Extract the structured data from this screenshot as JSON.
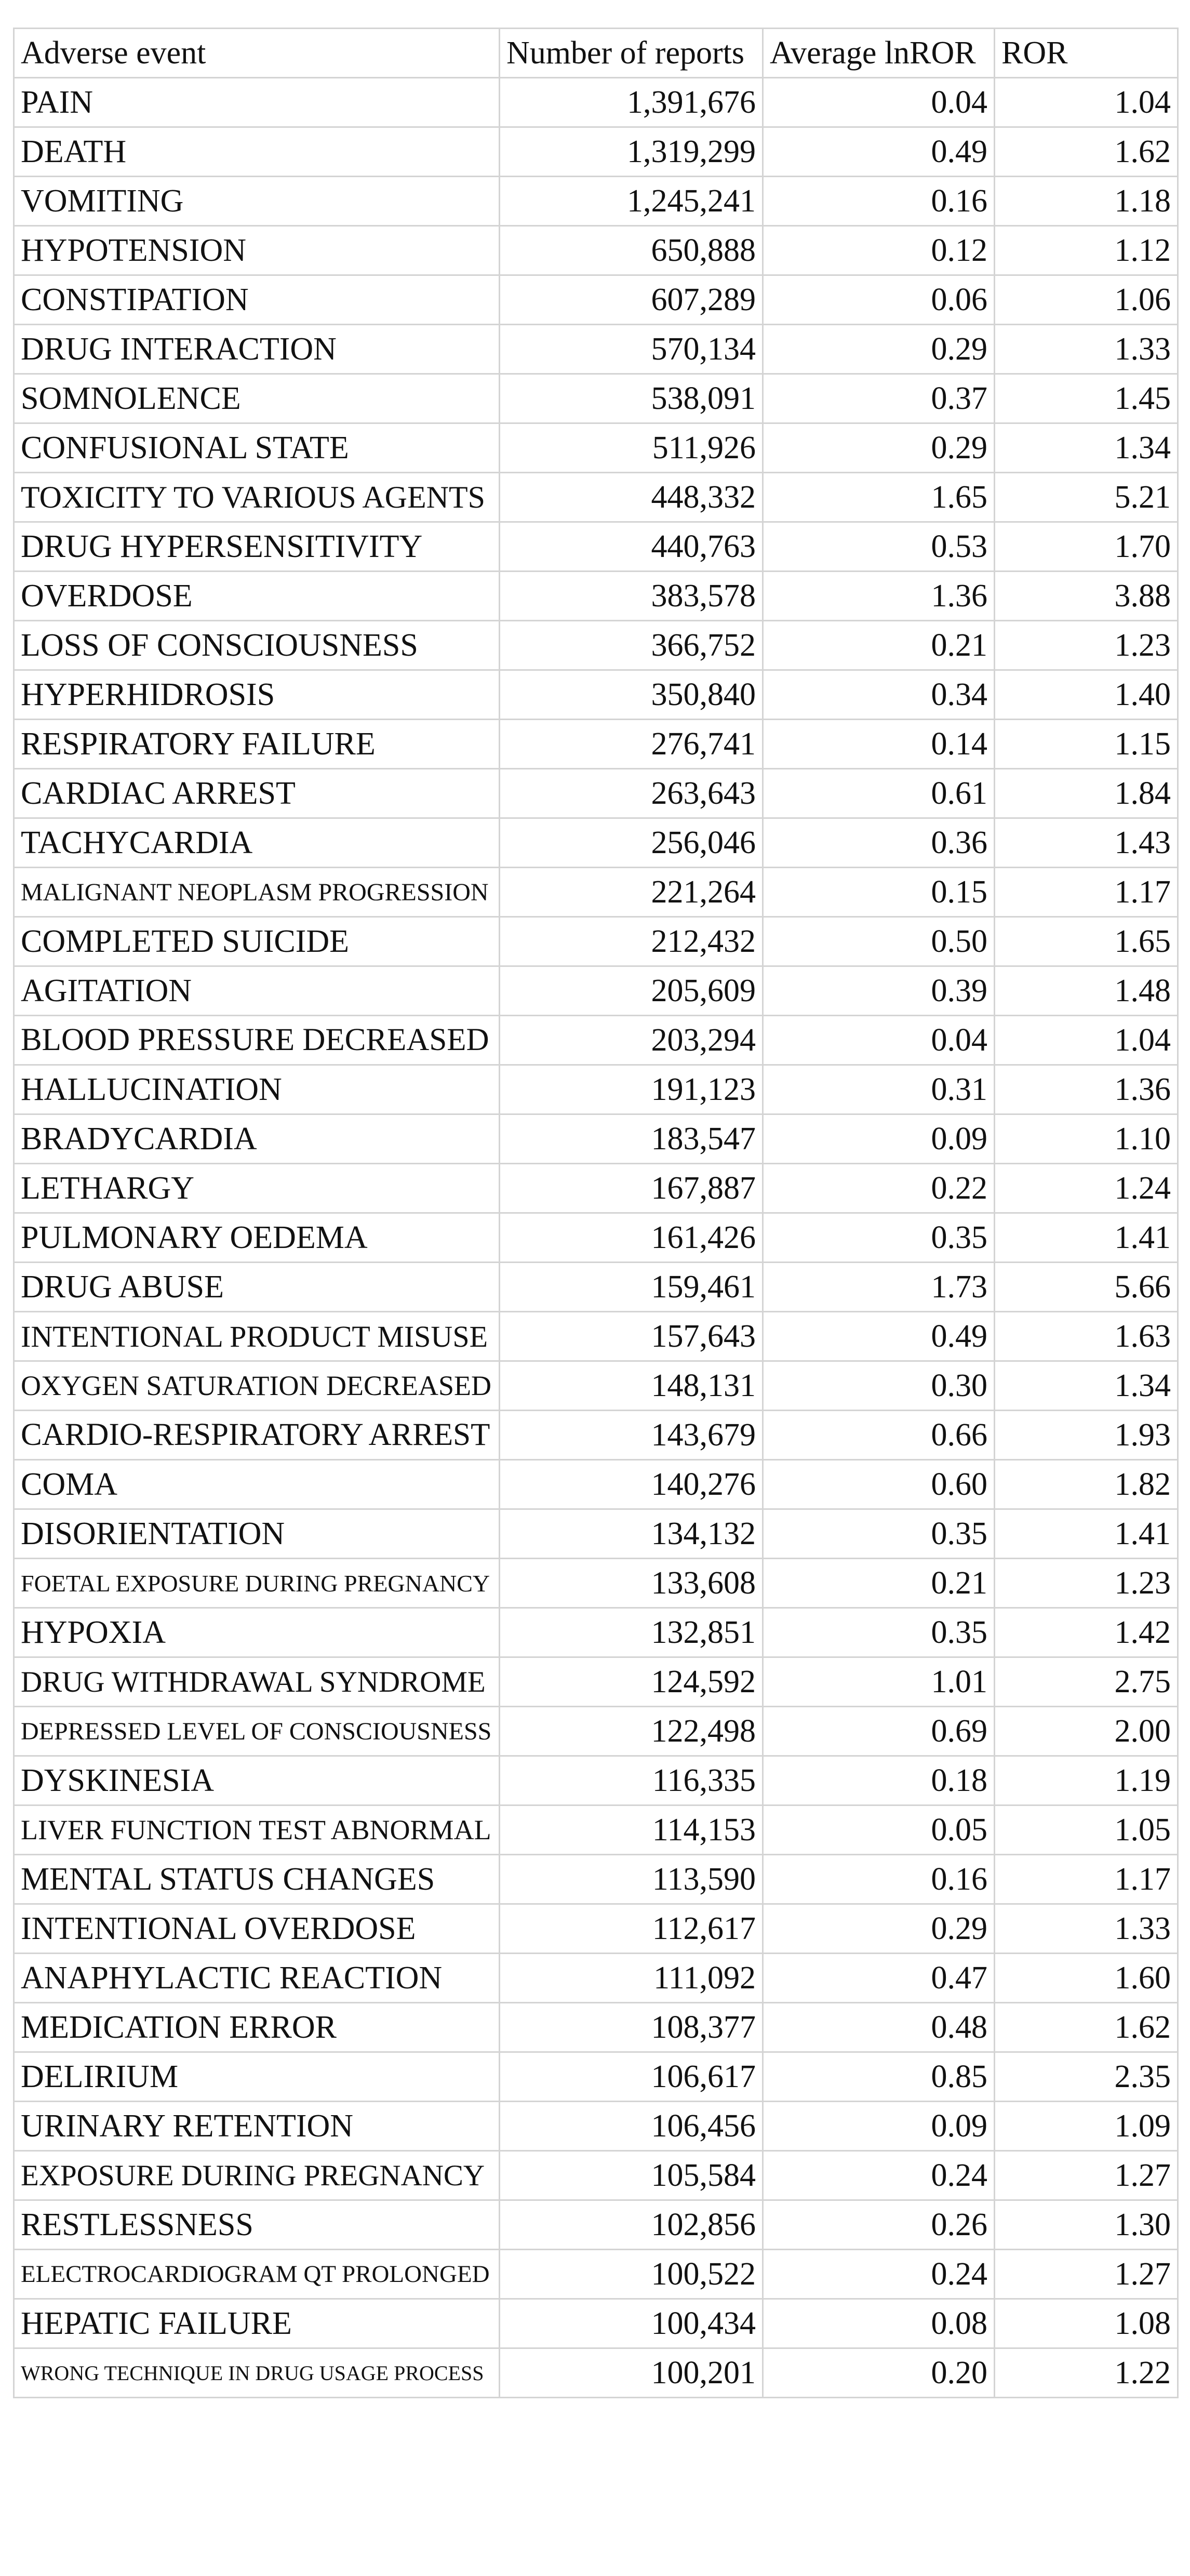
{
  "table": {
    "header": [
      "Adverse event",
      "Number of reports",
      "Average lnROR",
      "ROR"
    ],
    "rows": [
      [
        "PAIN",
        "1,391,676",
        "0.04",
        "1.04"
      ],
      [
        "DEATH",
        "1,319,299",
        "0.49",
        "1.62"
      ],
      [
        "VOMITING",
        "1,245,241",
        "0.16",
        "1.18"
      ],
      [
        "HYPOTENSION",
        "650,888",
        "0.12",
        "1.12"
      ],
      [
        "CONSTIPATION",
        "607,289",
        "0.06",
        "1.06"
      ],
      [
        "DRUG INTERACTION",
        "570,134",
        "0.29",
        "1.33"
      ],
      [
        "SOMNOLENCE",
        "538,091",
        "0.37",
        "1.45"
      ],
      [
        "CONFUSIONAL STATE",
        "511,926",
        "0.29",
        "1.34"
      ],
      [
        "TOXICITY TO VARIOUS AGENTS",
        "448,332",
        "1.65",
        "5.21"
      ],
      [
        "DRUG HYPERSENSITIVITY",
        "440,763",
        "0.53",
        "1.70"
      ],
      [
        "OVERDOSE",
        "383,578",
        "1.36",
        "3.88"
      ],
      [
        "LOSS OF CONSCIOUSNESS",
        "366,752",
        "0.21",
        "1.23"
      ],
      [
        "HYPERHIDROSIS",
        "350,840",
        "0.34",
        "1.40"
      ],
      [
        "RESPIRATORY FAILURE",
        "276,741",
        "0.14",
        "1.15"
      ],
      [
        "CARDIAC ARREST",
        "263,643",
        "0.61",
        "1.84"
      ],
      [
        "TACHYCARDIA",
        "256,046",
        "0.36",
        "1.43"
      ],
      [
        "MALIGNANT NEOPLASM PROGRESSION",
        "221,264",
        "0.15",
        "1.17"
      ],
      [
        "COMPLETED SUICIDE",
        "212,432",
        "0.50",
        "1.65"
      ],
      [
        "AGITATION",
        "205,609",
        "0.39",
        "1.48"
      ],
      [
        "BLOOD PRESSURE DECREASED",
        "203,294",
        "0.04",
        "1.04"
      ],
      [
        "HALLUCINATION",
        "191,123",
        "0.31",
        "1.36"
      ],
      [
        "BRADYCARDIA",
        "183,547",
        "0.09",
        "1.10"
      ],
      [
        "LETHARGY",
        "167,887",
        "0.22",
        "1.24"
      ],
      [
        "PULMONARY OEDEMA",
        "161,426",
        "0.35",
        "1.41"
      ],
      [
        "DRUG ABUSE",
        "159,461",
        "1.73",
        "5.66"
      ],
      [
        "INTENTIONAL PRODUCT MISUSE",
        "157,643",
        "0.49",
        "1.63"
      ],
      [
        "OXYGEN SATURATION DECREASED",
        "148,131",
        "0.30",
        "1.34"
      ],
      [
        "CARDIO-RESPIRATORY ARREST",
        "143,679",
        "0.66",
        "1.93"
      ],
      [
        "COMA",
        "140,276",
        "0.60",
        "1.82"
      ],
      [
        "DISORIENTATION",
        "134,132",
        "0.35",
        "1.41"
      ],
      [
        "FOETAL EXPOSURE DURING PREGNANCY",
        "133,608",
        "0.21",
        "1.23"
      ],
      [
        "HYPOXIA",
        "132,851",
        "0.35",
        "1.42"
      ],
      [
        "DRUG WITHDRAWAL SYNDROME",
        "124,592",
        "1.01",
        "2.75"
      ],
      [
        "DEPRESSED LEVEL OF CONSCIOUSNESS",
        "122,498",
        "0.69",
        "2.00"
      ],
      [
        "DYSKINESIA",
        "116,335",
        "0.18",
        "1.19"
      ],
      [
        "LIVER FUNCTION TEST ABNORMAL",
        "114,153",
        "0.05",
        "1.05"
      ],
      [
        "MENTAL STATUS CHANGES",
        "113,590",
        "0.16",
        "1.17"
      ],
      [
        "INTENTIONAL OVERDOSE",
        "112,617",
        "0.29",
        "1.33"
      ],
      [
        "ANAPHYLACTIC REACTION",
        "111,092",
        "0.47",
        "1.60"
      ],
      [
        "MEDICATION ERROR",
        "108,377",
        "0.48",
        "1.62"
      ],
      [
        "DELIRIUM",
        "106,617",
        "0.85",
        "2.35"
      ],
      [
        "URINARY RETENTION",
        "106,456",
        "0.09",
        "1.09"
      ],
      [
        "EXPOSURE DURING PREGNANCY",
        "105,584",
        "0.24",
        "1.27"
      ],
      [
        "RESTLESSNESS",
        "102,856",
        "0.26",
        "1.30"
      ],
      [
        "ELECTROCARDIOGRAM QT PROLONGED",
        "100,522",
        "0.24",
        "1.27"
      ],
      [
        "HEPATIC FAILURE",
        "100,434",
        "0.08",
        "1.08"
      ],
      [
        "WRONG TECHNIQUE IN DRUG USAGE PROCESS",
        "100,201",
        "0.20",
        "1.22"
      ]
    ]
  }
}
